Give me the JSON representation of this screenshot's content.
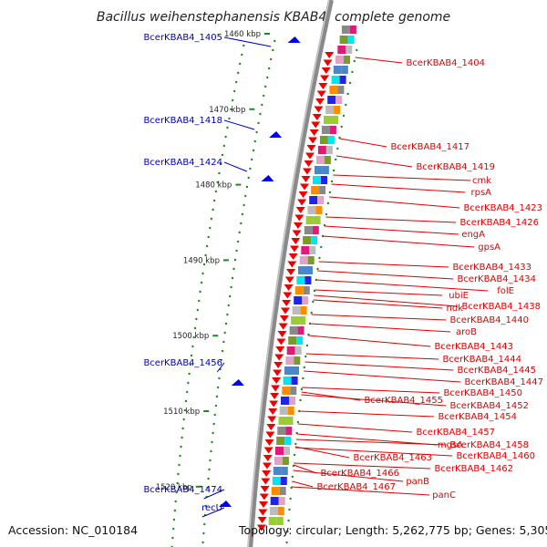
{
  "title": "Bacillus weihenstephanensis KBAB4, complete genome",
  "footer": {
    "accession": "Accession: NC_010184",
    "summary": "Topology: circular; Length: 5,262,775 bp; Genes: 5,305"
  },
  "colors": {
    "axis": "#8a8a8a",
    "tick": "#1f8a1f",
    "left_label": "#0000bb",
    "right_label": "#dd0000",
    "forward_gene": "#0000ee",
    "reverse_gene": "#ee0000"
  },
  "kbp_marks": [
    {
      "label": "1460 kbp",
      "kbp": 1460
    },
    {
      "label": "1470 kbp",
      "kbp": 1470
    },
    {
      "label": "1480 kbp",
      "kbp": 1480
    },
    {
      "label": "1490 kbp",
      "kbp": 1490
    },
    {
      "label": "1500 kbp",
      "kbp": 1500
    },
    {
      "label": "1510 kbp",
      "kbp": 1510
    },
    {
      "label": "1520 kbp",
      "kbp": 1520
    }
  ],
  "left_labels": [
    "BcerKBAB4_1405",
    "BcerKBAB4_1418",
    "BcerKBAB4_1424",
    "BcerKBAB4_1456",
    "BcerKBAB4_1474",
    "recU"
  ],
  "right_labels": [
    "BcerKBAB4_1404",
    "BcerKBAB4_1417",
    "BcerKBAB4_1419",
    "cmk",
    "rpsA",
    "BcerKBAB4_1423",
    "BcerKBAB4_1426",
    "engA",
    "gpsA",
    "BcerKBAB4_1433",
    "BcerKBAB4_1434",
    "folE",
    "ubiE",
    "ndk",
    "BcerKBAB4_1438",
    "BcerKBAB4_1440",
    "aroB",
    "BcerKBAB4_1443",
    "BcerKBAB4_1444",
    "BcerKBAB4_1445",
    "BcerKBAB4_1447",
    "BcerKBAB4_1450",
    "BcerKBAB4_1455",
    "BcerKBAB4_1452",
    "BcerKBAB4_1454",
    "BcerKBAB4_1457",
    "mgsA",
    "BcerKBAB4_1458",
    "BcerKBAB4_1460",
    "BcerKBAB4_1463",
    "BcerKBAB4_1462",
    "BcerKBAB4_1466",
    "panB",
    "BcerKBAB4_1467",
    "panC"
  ]
}
